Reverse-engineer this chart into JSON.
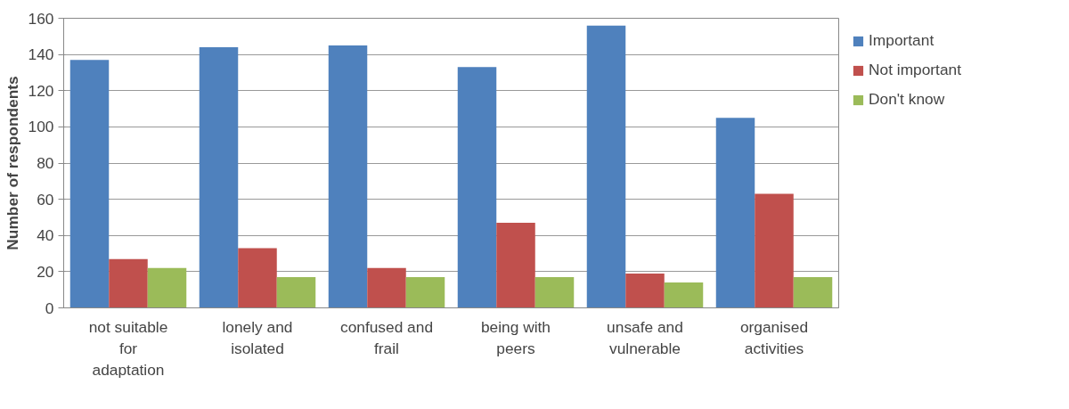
{
  "chart_data": {
    "type": "bar",
    "ylabel": "Number of respondents",
    "categories": [
      "not suitable for adaptation",
      "lonely and isolated",
      "confused and frail",
      "being with peers",
      "unsafe and vulnerable",
      "organised activities"
    ],
    "series": [
      {
        "name": "Important",
        "color": "#4f81bd",
        "values": [
          137,
          144,
          145,
          133,
          156,
          105
        ]
      },
      {
        "name": "Not important",
        "color": "#c0504d",
        "values": [
          27,
          33,
          22,
          47,
          19,
          63
        ]
      },
      {
        "name": "Don't know",
        "color": "#9bbb59",
        "values": [
          22,
          17,
          17,
          17,
          14,
          17
        ]
      }
    ],
    "ylim": [
      0,
      160
    ],
    "yticks": [
      0,
      20,
      40,
      60,
      80,
      100,
      120,
      140,
      160
    ],
    "grid": "y",
    "legend": "right"
  }
}
